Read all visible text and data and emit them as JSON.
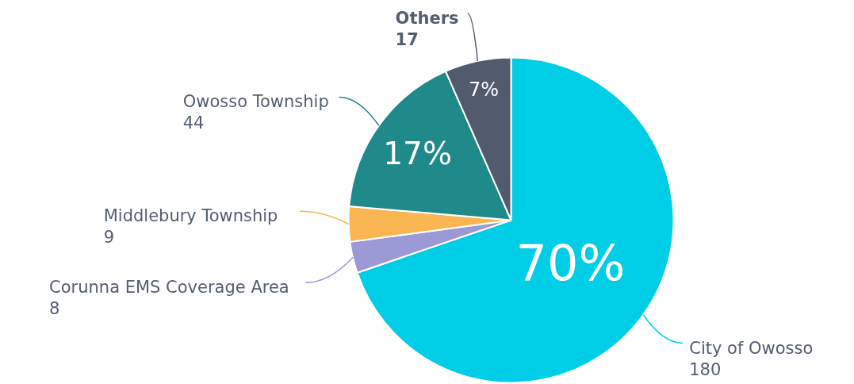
{
  "chart_data": {
    "type": "pie",
    "categories": [
      "City of Owosso",
      "Corunna EMS Coverage Area",
      "Middlebury Township",
      "Owosso Township",
      "Others"
    ],
    "values": [
      180,
      8,
      9,
      44,
      17
    ],
    "colors": [
      "#00cde6",
      "#9b99d6",
      "#f9b653",
      "#20898a",
      "#525a6e"
    ],
    "data_labels": true,
    "annotations": [
      {
        "text": "70%",
        "x": "City of Owosso"
      },
      {
        "text": "17%",
        "x": "Owosso Township"
      },
      {
        "text": "7%",
        "x": "Others"
      }
    ]
  }
}
